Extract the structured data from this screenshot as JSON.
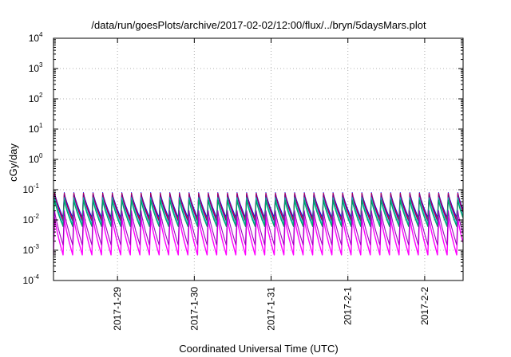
{
  "chart_data": {
    "type": "line",
    "title": "/data/run/goesPlots/archive/2017-02-02/12:00/flux/../bryn/5daysMars.plot",
    "xlabel": "Coordinated Universal Time (UTC)",
    "ylabel": "cGy/day",
    "y_scale": "log",
    "ylim": [
      0.0001,
      10000
    ],
    "xlim": [
      "2017-01-28 04:00",
      "2017-02-02 12:00"
    ],
    "y_ticks": [
      {
        "base": "10",
        "exp": "-4"
      },
      {
        "base": "10",
        "exp": "-3"
      },
      {
        "base": "10",
        "exp": "-2"
      },
      {
        "base": "10",
        "exp": "-1"
      },
      {
        "base": "10",
        "exp": "0"
      },
      {
        "base": "10",
        "exp": "1"
      },
      {
        "base": "10",
        "exp": "2"
      },
      {
        "base": "10",
        "exp": "3"
      },
      {
        "base": "10",
        "exp": "4"
      }
    ],
    "x_ticks": [
      "2017-1-29",
      "2017-1-30",
      "2017-1-31",
      "2017-2-1",
      "2017-2-2"
    ],
    "grid": true,
    "legend": "none",
    "pattern": {
      "description_of_form": "sawtooth: sharp rise every ~3 hours followed by exponential decay",
      "period_hours": 3,
      "start": "2017-01-28 04:00",
      "end": "2017-02-02 12:00"
    },
    "series": [
      {
        "color": "#0000ff",
        "peak": 0.08,
        "trough": 0.012
      },
      {
        "color": "#ff00ff",
        "peak": 0.012,
        "trough": 0.0007
      },
      {
        "color": "#ff0000",
        "peak": 0.075,
        "trough": 0.01
      },
      {
        "color": "#800080",
        "peak": 0.07,
        "trough": 0.009
      },
      {
        "color": "#00c0c0",
        "peak": 0.055,
        "trough": 0.007
      },
      {
        "color": "#00a060",
        "peak": 0.045,
        "trough": 0.006
      },
      {
        "color": "#a000c0",
        "peak": 0.02,
        "trough": 0.0015
      }
    ]
  }
}
